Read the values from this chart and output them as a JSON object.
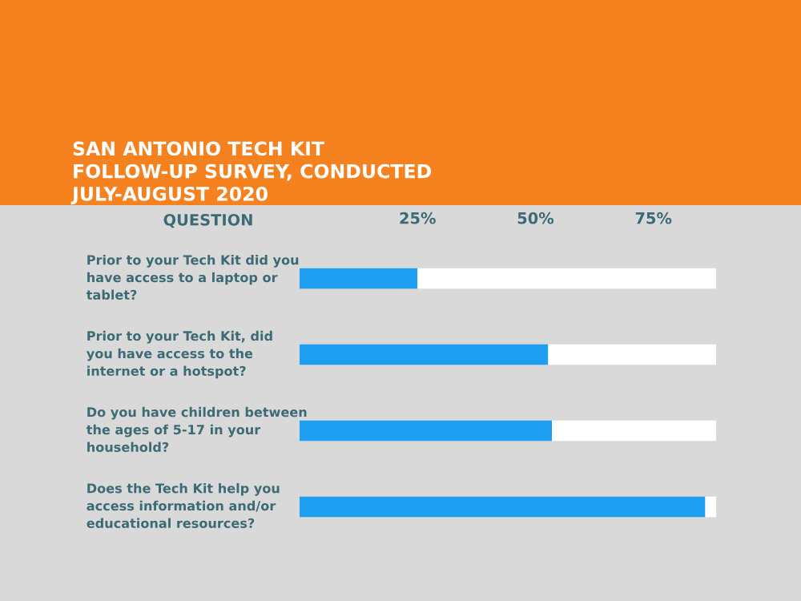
{
  "chart_data": {
    "type": "bar",
    "orientation": "horizontal",
    "stacked": true,
    "title": "SAN ANTONIO TECH KIT FOLLOW-UP SURVEY, CONDUCTED JULY-AUGUST 2020",
    "ylabel": "QUESTION",
    "categories": [
      "Prior to your Tech Kit did you have access to a laptop or tablet?",
      "Prior to your Tech Kit, did you have access to the internet or a hotspot?",
      "Do you have children between the ages of 5-17 in your household?",
      "Does the Tech Kit help you access information and/or educational resources?"
    ],
    "series": [
      {
        "color": "#1e9ff2",
        "values": [
          25,
          52.7,
          53.5,
          86
        ]
      },
      {
        "color": "#ffffff",
        "values": [
          63.3,
          35.6,
          34.8,
          2.3
        ]
      }
    ],
    "xlim": [
      0,
      88.3
    ],
    "xticks": [
      {
        "value": 25,
        "label": "25%"
      },
      {
        "value": 50,
        "label": "50%"
      },
      {
        "value": 75,
        "label": "75%"
      }
    ],
    "grid": false,
    "legend": false
  }
}
